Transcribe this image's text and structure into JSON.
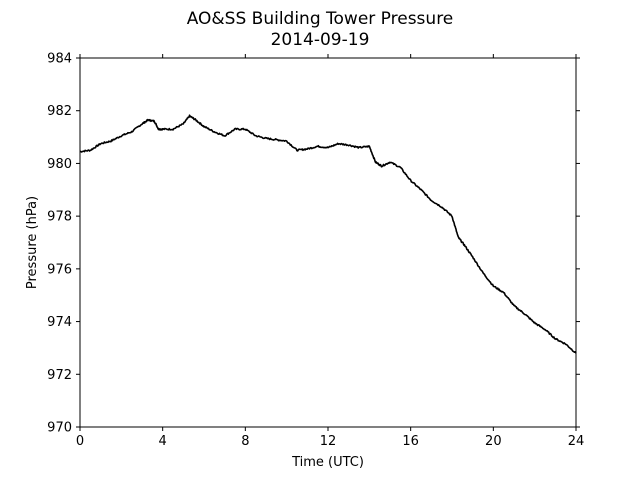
{
  "chart_data": {
    "type": "line",
    "title": "AO&SS Building Tower Pressure",
    "subtitle": "2014-09-19",
    "xlabel": "Time (UTC)",
    "ylabel": "Pressure (hPa)",
    "xlim": [
      0,
      24
    ],
    "ylim": [
      970,
      984
    ],
    "xticks": [
      0,
      4,
      8,
      12,
      16,
      20,
      24
    ],
    "yticks": [
      970,
      972,
      974,
      976,
      978,
      980,
      982,
      984
    ],
    "grid": false,
    "series_color": "#000000",
    "series": [
      {
        "x": [
          0,
          0.5,
          1,
          1.5,
          2,
          2.5,
          3,
          3.3,
          3.6,
          3.8,
          4,
          4.5,
          5,
          5.3,
          5.6,
          6,
          6.5,
          7,
          7.5,
          8,
          8.5,
          9,
          9.5,
          10,
          10.5,
          11,
          11.5,
          12,
          12.5,
          13,
          13.5,
          14,
          14.3,
          14.6,
          15,
          15.5,
          16,
          16.5,
          17,
          17.5,
          18,
          18.3,
          18.6,
          19,
          19.5,
          20,
          20.5,
          21,
          21.5,
          22,
          22.5,
          23,
          23.5,
          24
        ],
        "y": [
          980.45,
          980.5,
          980.75,
          980.85,
          981.05,
          981.2,
          981.5,
          981.65,
          981.6,
          981.3,
          981.3,
          981.3,
          981.5,
          981.8,
          981.65,
          981.4,
          981.2,
          981.05,
          981.3,
          981.3,
          981.05,
          980.95,
          980.9,
          980.85,
          980.5,
          980.55,
          980.65,
          980.6,
          980.75,
          980.7,
          980.6,
          980.65,
          980.05,
          979.9,
          980.05,
          979.85,
          979.35,
          979.0,
          978.6,
          978.35,
          978.0,
          977.2,
          976.9,
          976.45,
          975.85,
          975.35,
          975.1,
          974.6,
          974.3,
          973.95,
          973.7,
          973.35,
          973.15,
          972.8
        ]
      }
    ]
  }
}
